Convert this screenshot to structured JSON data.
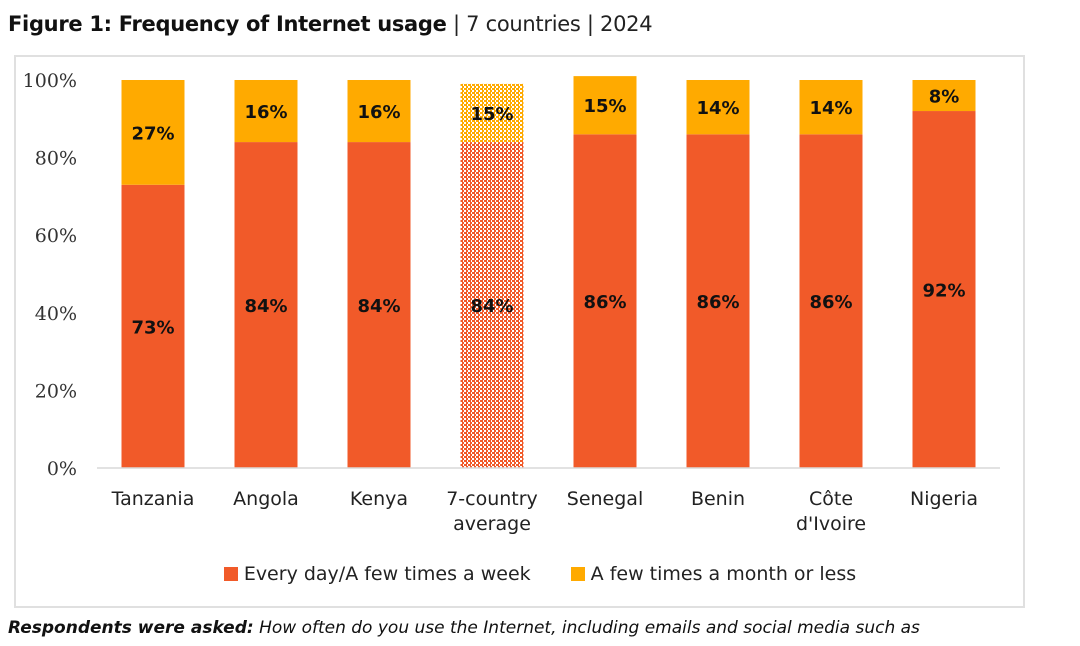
{
  "header": {
    "title_bold": "Figure 1: Frequency of Internet usage",
    "separator": "|",
    "subtitle_countries": "7 countries",
    "subtitle_year": "2024"
  },
  "colors": {
    "frequent": "#F15A29",
    "infrequent": "#FFAA00",
    "gridline": "#d9d9d9",
    "border": "#e0e0e0"
  },
  "chart_data": {
    "type": "bar",
    "stacked": true,
    "title": "Frequency of Internet usage",
    "categories": [
      "Tanzania",
      "Angola",
      "Kenya",
      "7-country average",
      "Senegal",
      "Benin",
      "Côte d'Ivoire",
      "Nigeria"
    ],
    "category_lines": [
      [
        "Tanzania"
      ],
      [
        "Angola"
      ],
      [
        "Kenya"
      ],
      [
        "7-country",
        "average"
      ],
      [
        "Senegal"
      ],
      [
        "Benin"
      ],
      [
        "Côte",
        "d'Ivoire"
      ],
      [
        "Nigeria"
      ]
    ],
    "highlighted_category": "7-country average",
    "series": [
      {
        "name": "Every day/A few times a week",
        "color": "#F15A29",
        "values": [
          73,
          84,
          84,
          84,
          86,
          86,
          86,
          92
        ],
        "labels": [
          "73%",
          "84%",
          "84%",
          "84%",
          "86%",
          "86%",
          "86%",
          "92%"
        ]
      },
      {
        "name": "A few times a month or less",
        "color": "#FFAA00",
        "values": [
          27,
          16,
          16,
          15,
          15,
          14,
          14,
          8
        ],
        "labels": [
          "27%",
          "16%",
          "16%",
          "15%",
          "15%",
          "14%",
          "14%",
          "8%"
        ]
      }
    ],
    "yticks": [
      "0%",
      "20%",
      "40%",
      "60%",
      "80%",
      "100%"
    ],
    "ytick_values": [
      0,
      20,
      40,
      60,
      80,
      100
    ],
    "ylim": [
      0,
      100
    ],
    "xlabel": "",
    "ylabel": "",
    "grid": false,
    "legend_position": "bottom"
  },
  "legend": {
    "items": [
      {
        "label": "Every day/A few times a week",
        "color": "#F15A29"
      },
      {
        "label": "A few times a month or less",
        "color": "#FFAA00"
      }
    ]
  },
  "footnote": {
    "question_label": "Respondents were asked:",
    "question_text": "How often do you use the Internet, including emails and social media such as"
  }
}
